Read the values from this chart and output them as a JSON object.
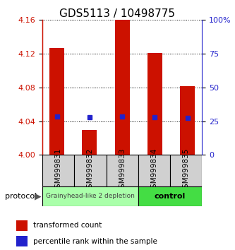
{
  "title": "GDS5113 / 10498775",
  "samples": [
    "GSM999831",
    "GSM999832",
    "GSM999833",
    "GSM999834",
    "GSM999835"
  ],
  "bar_tops": [
    4.127,
    4.03,
    4.16,
    4.121,
    4.082
  ],
  "bar_bottom": 4.0,
  "blue_y": [
    4.046,
    4.045,
    4.046,
    4.045,
    4.044
  ],
  "ylim": [
    4.0,
    4.16
  ],
  "yticks_left": [
    4.0,
    4.04,
    4.08,
    4.12,
    4.16
  ],
  "yticks_right": [
    0,
    25,
    50,
    75,
    100
  ],
  "bar_color": "#cc1100",
  "blue_color": "#2222cc",
  "group1_label": "Grainyhead-like 2 depletion",
  "group2_label": "control",
  "group1_indices": [
    0,
    1,
    2
  ],
  "group2_indices": [
    3,
    4
  ],
  "group1_color": "#aaffaa",
  "group2_color": "#44dd44",
  "legend_red": "transformed count",
  "legend_blue": "percentile rank within the sample",
  "protocol_label": "protocol",
  "background_color": "#ffffff",
  "title_fontsize": 11,
  "tick_fontsize": 8,
  "sample_label_fontsize": 7.5
}
